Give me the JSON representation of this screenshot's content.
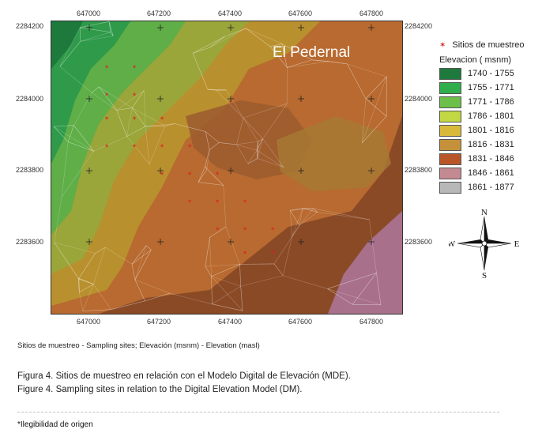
{
  "map": {
    "title": "El Pedernal",
    "x_ticks": [
      "647000",
      "647200",
      "647400",
      "647600",
      "647800"
    ],
    "y_ticks": [
      "2284200",
      "2284000",
      "2283800",
      "2283600"
    ]
  },
  "legend": {
    "sites_label": "Sitios de muestreo",
    "elevation_title": "Elevacion (  msnm)",
    "classes": [
      {
        "label": "1740 - 1755",
        "color": "#1e7a3c"
      },
      {
        "label": "1755 - 1771",
        "color": "#2fae4c"
      },
      {
        "label": "1771 - 1786",
        "color": "#6cc04a"
      },
      {
        "label": "1786 - 1801",
        "color": "#c2d843"
      },
      {
        "label": "1801 - 1816",
        "color": "#d8b93a"
      },
      {
        "label": "1816 - 1831",
        "color": "#c4913a"
      },
      {
        "label": "1831 - 1846",
        "color": "#b8562a"
      },
      {
        "label": "1846 - 1861",
        "color": "#c48a92"
      },
      {
        "label": "1861 - 1877",
        "color": "#b8b8b8"
      }
    ]
  },
  "compass": {
    "n": "N",
    "s": "S",
    "e": "E",
    "w": "W"
  },
  "captions": {
    "legend_translation": "Sitios de muestreo - Sampling sites; Elevación (msnm) - Elevation (masl)",
    "figure_es": "Figura 4. Sitios de muestreo en relación con el Modelo Digital de Elevación (MDE).",
    "figure_en": "Figure 4. Sampling sites in relation to the Digital Elevation Model (DM).",
    "source_note": "*Ilegibilidad de origen"
  },
  "colors": {
    "site_marker": "#dd2222",
    "grid_cross": "#222222"
  }
}
